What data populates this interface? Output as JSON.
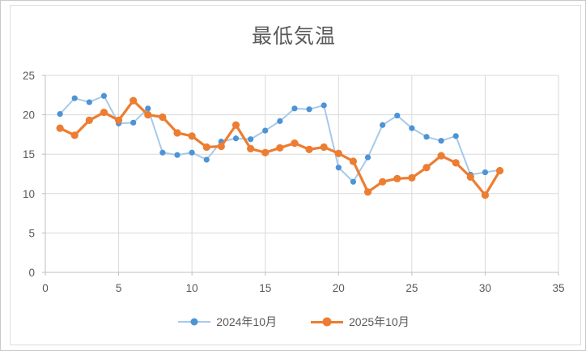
{
  "title": "最低気温",
  "colors": {
    "blue_line": "#a7c9ea",
    "blue_marker": "#4d93d5",
    "orange": "#ed7d31",
    "grid": "#d9d9d9",
    "axis": "#bfbfbf",
    "text": "#595959"
  },
  "chart_data": {
    "type": "line",
    "title": "最低気温",
    "x": [
      1,
      2,
      3,
      4,
      5,
      6,
      7,
      8,
      9,
      10,
      11,
      12,
      13,
      14,
      15,
      16,
      17,
      18,
      19,
      20,
      21,
      22,
      23,
      24,
      25,
      26,
      27,
      28,
      29,
      30,
      31
    ],
    "series": [
      {
        "name": "2024年10月",
        "values": [
          20.1,
          22.1,
          21.6,
          22.4,
          18.9,
          19.0,
          20.8,
          15.2,
          14.9,
          15.2,
          14.3,
          16.6,
          17.0,
          16.9,
          18.0,
          19.2,
          20.8,
          20.7,
          21.2,
          13.3,
          11.5,
          14.6,
          18.7,
          19.9,
          18.3,
          17.2,
          16.7,
          17.3,
          12.4,
          12.7,
          13.0
        ]
      },
      {
        "name": "2025年10月",
        "values": [
          18.3,
          17.4,
          19.3,
          20.3,
          19.3,
          21.8,
          20.0,
          19.7,
          17.7,
          17.3,
          15.9,
          16.0,
          18.7,
          15.7,
          15.2,
          15.8,
          16.4,
          15.6,
          15.9,
          15.1,
          14.1,
          10.2,
          11.5,
          11.9,
          12.0,
          13.3,
          14.8,
          13.9,
          12.1,
          9.8,
          12.9
        ]
      }
    ],
    "xlim": [
      0,
      35
    ],
    "ylim": [
      0,
      25
    ],
    "x_ticks": [
      0,
      5,
      10,
      15,
      20,
      25,
      30,
      35
    ],
    "y_ticks": [
      0,
      5,
      10,
      15,
      20,
      25
    ],
    "grid": true,
    "legend_position": "bottom"
  }
}
